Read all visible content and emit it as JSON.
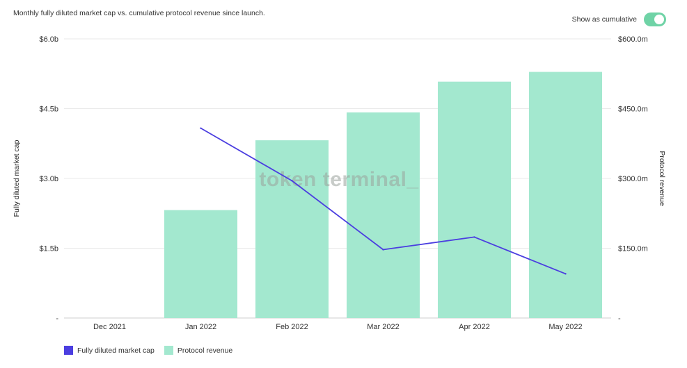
{
  "header": {
    "subtitle": "Monthly fully diluted market cap vs. cumulative protocol revenue since launch.",
    "toggle_label": "Show as cumulative",
    "toggle_on": true
  },
  "watermark": "token terminal_",
  "colors": {
    "line": "#4b3ee0",
    "bar": "#a3e8cf",
    "toggle": "#6fd3a6",
    "grid": "#e8e8e8"
  },
  "chart_data": {
    "type": "bar+line",
    "categories": [
      "Dec 2021",
      "Jan 2022",
      "Feb 2022",
      "Mar 2022",
      "Apr 2022",
      "May 2022"
    ],
    "series": [
      {
        "name": "Fully diluted market cap",
        "type": "line",
        "axis": "left",
        "unit": "$b",
        "values": [
          null,
          4.08,
          2.95,
          1.47,
          1.74,
          0.95
        ]
      },
      {
        "name": "Protocol revenue",
        "type": "bar",
        "axis": "right",
        "unit": "$m",
        "values": [
          0,
          232,
          382,
          442,
          508,
          529
        ]
      }
    ],
    "left_axis": {
      "label": "Fully diluted market cap",
      "ylim": [
        0,
        6.0
      ],
      "ticks": [
        0,
        1.5,
        3.0,
        4.5,
        6.0
      ],
      "tick_labels": [
        "-",
        "$1.5b",
        "$3.0b",
        "$4.5b",
        "$6.0b"
      ]
    },
    "right_axis": {
      "label": "Protocol revenue",
      "ylim": [
        0,
        600
      ],
      "ticks": [
        0,
        150,
        300,
        450,
        600
      ],
      "tick_labels": [
        "-",
        "$150.0m",
        "$300.0m",
        "$450.0m",
        "$600.0m"
      ]
    },
    "grid": true,
    "legend_position": "bottom-left"
  }
}
